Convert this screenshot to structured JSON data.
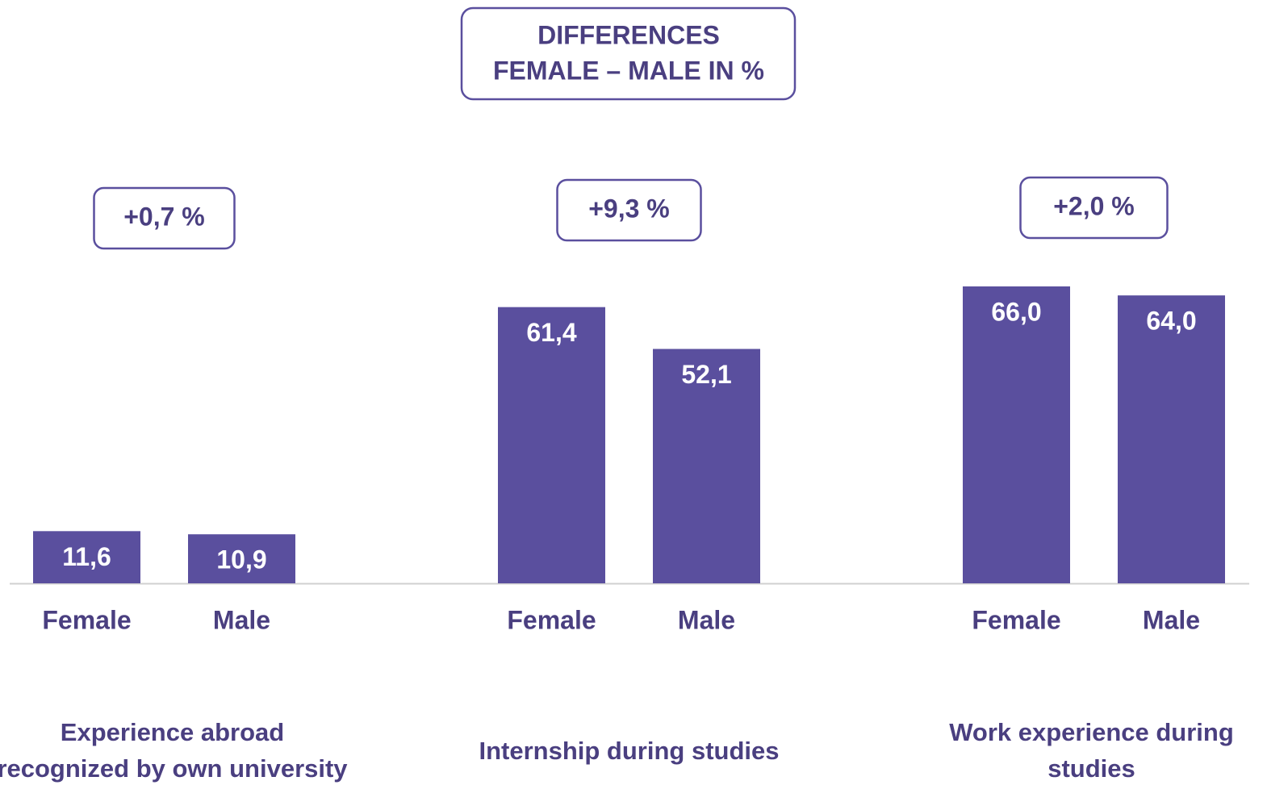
{
  "chart_data": {
    "type": "bar",
    "title": [
      "DIFFERENCES",
      "FEMALE – MALE IN %"
    ],
    "categories": [
      "Experience abroad recognized by own university",
      "Internship during studies",
      "Work experience during studies"
    ],
    "series": [
      {
        "name": "Female",
        "color": "#5a4f9e",
        "values": [
          11.6,
          61.4,
          66.0
        ],
        "value_labels": [
          "11,6",
          "61,4",
          "66,0"
        ]
      },
      {
        "name": "Male",
        "color": "#5a4f9e",
        "values": [
          10.9,
          52.1,
          64.0
        ],
        "value_labels": [
          "10,9",
          "52,1",
          "64,0"
        ]
      }
    ],
    "annotations": [
      "+0,7 %",
      "+9,3 %",
      "+2,0 %"
    ]
  }
}
